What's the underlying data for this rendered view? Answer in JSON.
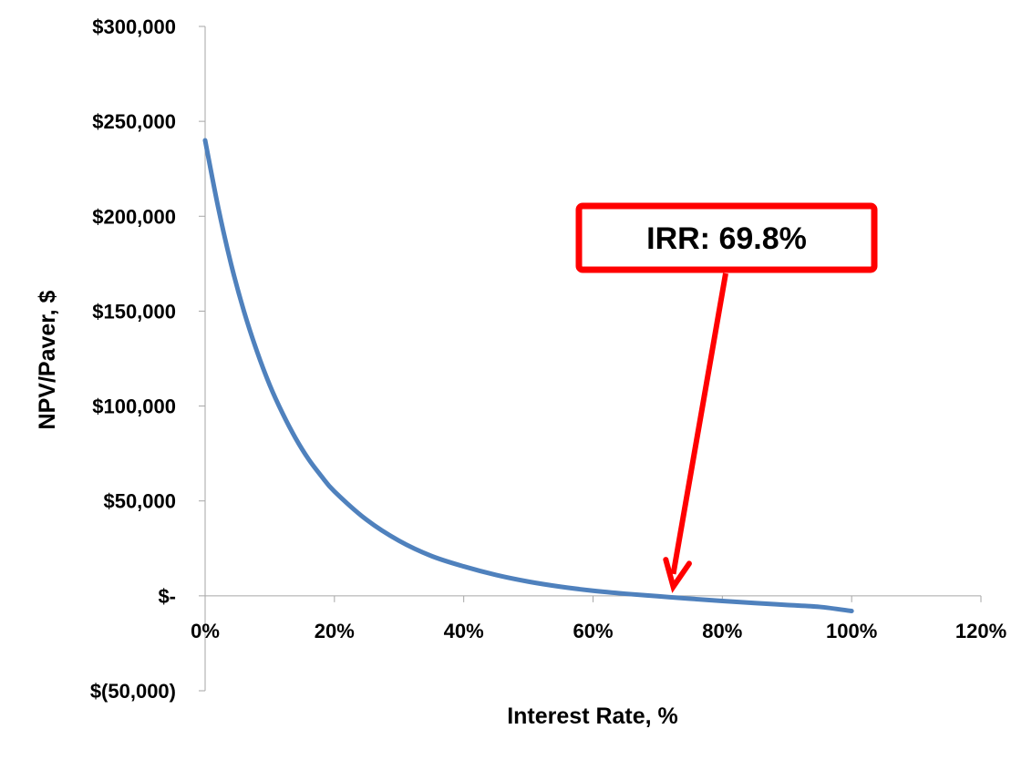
{
  "chart_data": {
    "type": "line",
    "title": "",
    "xlabel": "Interest Rate, %",
    "ylabel": "NPV/Paver, $",
    "xlim": [
      0,
      1.2
    ],
    "ylim": [
      -50000,
      300000
    ],
    "x_ticks": [
      {
        "value": 0,
        "label": "0%"
      },
      {
        "value": 0.2,
        "label": "20%"
      },
      {
        "value": 0.4,
        "label": "40%"
      },
      {
        "value": 0.6,
        "label": "60%"
      },
      {
        "value": 0.8,
        "label": "80%"
      },
      {
        "value": 1.0,
        "label": "100%"
      },
      {
        "value": 1.2,
        "label": "120%"
      }
    ],
    "y_ticks": [
      {
        "value": 300000,
        "label": "$300,000"
      },
      {
        "value": 250000,
        "label": "$250,000"
      },
      {
        "value": 200000,
        "label": "$200,000"
      },
      {
        "value": 150000,
        "label": "$150,000"
      },
      {
        "value": 100000,
        "label": "$100,000"
      },
      {
        "value": 50000,
        "label": "$50,000"
      },
      {
        "value": 0,
        "label": "$-"
      },
      {
        "value": -50000,
        "label": "$(50,000)"
      }
    ],
    "grid": false,
    "series": [
      {
        "color": "#4F81BD",
        "x": [
          0,
          0.02,
          0.04,
          0.06,
          0.08,
          0.1,
          0.12,
          0.14,
          0.16,
          0.18,
          0.2,
          0.25,
          0.3,
          0.35,
          0.4,
          0.45,
          0.5,
          0.55,
          0.6,
          0.65,
          0.7,
          0.75,
          0.8,
          0.85,
          0.9,
          0.95,
          1.0
        ],
        "y": [
          240000,
          205000,
          175000,
          150000,
          129000,
          111000,
          96000,
          83000,
          72000,
          63000,
          55000,
          40000,
          29000,
          21000,
          15500,
          11000,
          7500,
          4800,
          2700,
          1100,
          -200,
          -1500,
          -2700,
          -3800,
          -4800,
          -5800,
          -8000
        ]
      }
    ],
    "annotations": [
      {
        "text": "IRR: 69.8%",
        "border_color": "#FF0000",
        "arrow_color": "#FF0000",
        "points_to": {
          "x": 0.71,
          "y": 0
        }
      }
    ]
  }
}
